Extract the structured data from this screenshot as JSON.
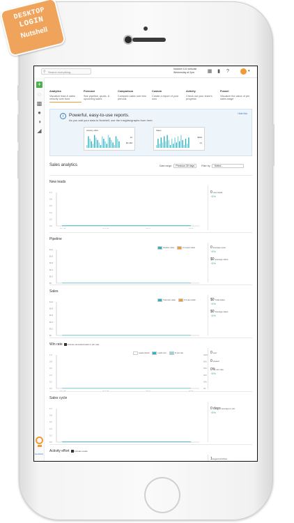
{
  "badge": {
    "line1": "DESKTOP",
    "line2": "LOGIN",
    "line3": "Nutshell"
  },
  "topbar": {
    "search_placeholder": "Search everything...",
    "webinar_line1": "Nutshell 101 webcast",
    "webinar_line2": "Wednesday at 2pm",
    "icons": [
      "calendar-icon",
      "bookmark-icon",
      "help-icon"
    ]
  },
  "sidebar": {
    "feedback": "feedback"
  },
  "tabs": [
    {
      "title": "Analytics",
      "desc": "Visualize lead & sales velocity over time",
      "active": true,
      "beta": ""
    },
    {
      "title": "Forecast",
      "desc": "See pipeline, quota, & upcoming sales",
      "active": false,
      "beta": ""
    },
    {
      "title": "Comparison",
      "desc": "Compare sales over two periods",
      "active": false,
      "beta": ""
    },
    {
      "title": "Custom",
      "desc": "Create a report of your own",
      "active": false,
      "beta": ""
    },
    {
      "title": "Activity",
      "desc": "Check out your team's progress",
      "active": false,
      "beta": "Beta"
    },
    {
      "title": "Funnel",
      "desc": "Visualize the value of per sales stage",
      "active": false,
      "beta": "Beta"
    }
  ],
  "promo": {
    "heading": "Powerful, easy-to-use reports.",
    "sub": "As you add your data to Nutshell, use the Insights/graphs from here.",
    "hide": "Hide this",
    "mini_left": {
      "title": "Activity effort",
      "v1": "10",
      "v2": "$2,180"
    },
    "mini_right": {
      "title": "Sales",
      "v1": "$600",
      "v2": "21"
    }
  },
  "analytics": {
    "title": "Sales analytics",
    "date_range_label": "Date range",
    "date_range_value": "Previous 30 days",
    "filter_label": "Filter by",
    "filter_value": "Select..."
  },
  "chart_data": [
    {
      "type": "line",
      "title": "New leads",
      "x": [
        "Sep 16",
        "Sep 23",
        "Oct 2",
        "Oct 9"
      ],
      "ylim": [
        0,
        1
      ],
      "yticks": [
        "1.0",
        "0.8",
        "0.6",
        "0.4",
        "0.2",
        "0.0"
      ],
      "series": [
        {
          "name": "",
          "values": [
            0,
            0,
            0,
            0
          ]
        }
      ],
      "stats": [
        {
          "value": "0",
          "label": "new leads",
          "change": "0%"
        }
      ]
    },
    {
      "type": "line",
      "title": "Pipeline",
      "x": [
        "Sep 16",
        "Sep 23",
        "Oct 2",
        "Oct 9"
      ],
      "ylim": [
        0,
        1
      ],
      "yticks": [
        "$1.0",
        "$0.8",
        "$0.6",
        "$0.4",
        "$0.2",
        "$0"
      ],
      "legend": [
        "Pipeline value",
        "# of open leads"
      ],
      "series": [
        {
          "name": "Pipeline value",
          "values": [
            0,
            0,
            0,
            0
          ]
        },
        {
          "name": "# of open leads",
          "values": [
            0,
            0,
            0,
            0
          ]
        }
      ],
      "stats": [
        {
          "value": "0",
          "label": "average open",
          "change": "0%"
        },
        {
          "value": "$0",
          "label": "average value",
          "change": "0%"
        }
      ]
    },
    {
      "type": "line",
      "title": "Sales",
      "x": [
        "Sep 16",
        "Sep 23",
        "Oct 2",
        "Oct 9"
      ],
      "ylim": [
        0,
        1
      ],
      "yticks": [
        "$1.0",
        "$0.8",
        "$0.6",
        "$0.4",
        "$0.2",
        "$0"
      ],
      "legend": [
        "Total won value",
        "# of won leads"
      ],
      "series": [
        {
          "name": "Total won value",
          "values": [
            0,
            0,
            0,
            0
          ]
        },
        {
          "name": "# of won leads",
          "values": [
            0,
            0,
            0,
            0
          ]
        }
      ],
      "stats": [
        {
          "value": "$0",
          "label": "Total sales",
          "change": "0%"
        },
        {
          "value": "$0",
          "label": "Average sales",
          "change": "0%"
        }
      ]
    },
    {
      "type": "line",
      "title": "Win rate",
      "checkbox": "Include cancelled leads in win rate",
      "x": [
        "Sep 16",
        "Sep 23",
        "Oct 2",
        "Oct 9"
      ],
      "ylim": [
        0,
        1
      ],
      "yticks": [
        "1.0",
        "0.8",
        "0.6",
        "0.4",
        "0.2",
        "0.0"
      ],
      "yticks_right": [
        "100%",
        "80%",
        "60%",
        "40%",
        "20%",
        "0%"
      ],
      "legend": [
        "Leads closed",
        "Leads won",
        "% win rate"
      ],
      "series": [
        {
          "name": "Leads closed",
          "values": [
            0,
            0,
            0,
            0
          ]
        },
        {
          "name": "Leads won",
          "values": [
            0,
            0,
            0,
            0
          ]
        },
        {
          "name": "% win rate",
          "values": [
            0,
            0,
            0,
            0
          ]
        }
      ],
      "stats": [
        {
          "value": "0",
          "label": "won",
          "change": ""
        },
        {
          "value": "0",
          "label": "closed",
          "change": ""
        },
        {
          "value": "0%",
          "label": "win rate",
          "change": "0%"
        }
      ]
    },
    {
      "type": "line",
      "title": "Sales cycle",
      "x": [
        "Sep 16",
        "Sep 23",
        "Oct 2",
        "Oct 9"
      ],
      "ylim": [
        0,
        1
      ],
      "yticks": [
        "1.0",
        "0.8",
        "0.6",
        "0.4",
        "0.2",
        "0.0"
      ],
      "series": [
        {
          "name": "",
          "values": [
            0,
            0,
            0,
            0
          ]
        }
      ],
      "stats": [
        {
          "value": "0 days",
          "label": "average to win",
          "change": "0%"
        }
      ]
    },
    {
      "type": "line",
      "title": "Activity effort",
      "checkbox": "Include emails",
      "x": [],
      "ylim": [
        0,
        1
      ],
      "yticks": [
        "1.0"
      ],
      "series": [],
      "stats": [
        {
          "value": "1",
          "label": "logged activities",
          "change": ""
        }
      ]
    }
  ],
  "colors": {
    "accent": "#f29a33",
    "blue": "#3a7bbf",
    "teal": "#2bb3c0",
    "green": "#3fae62",
    "plus": "#4cae4c"
  }
}
